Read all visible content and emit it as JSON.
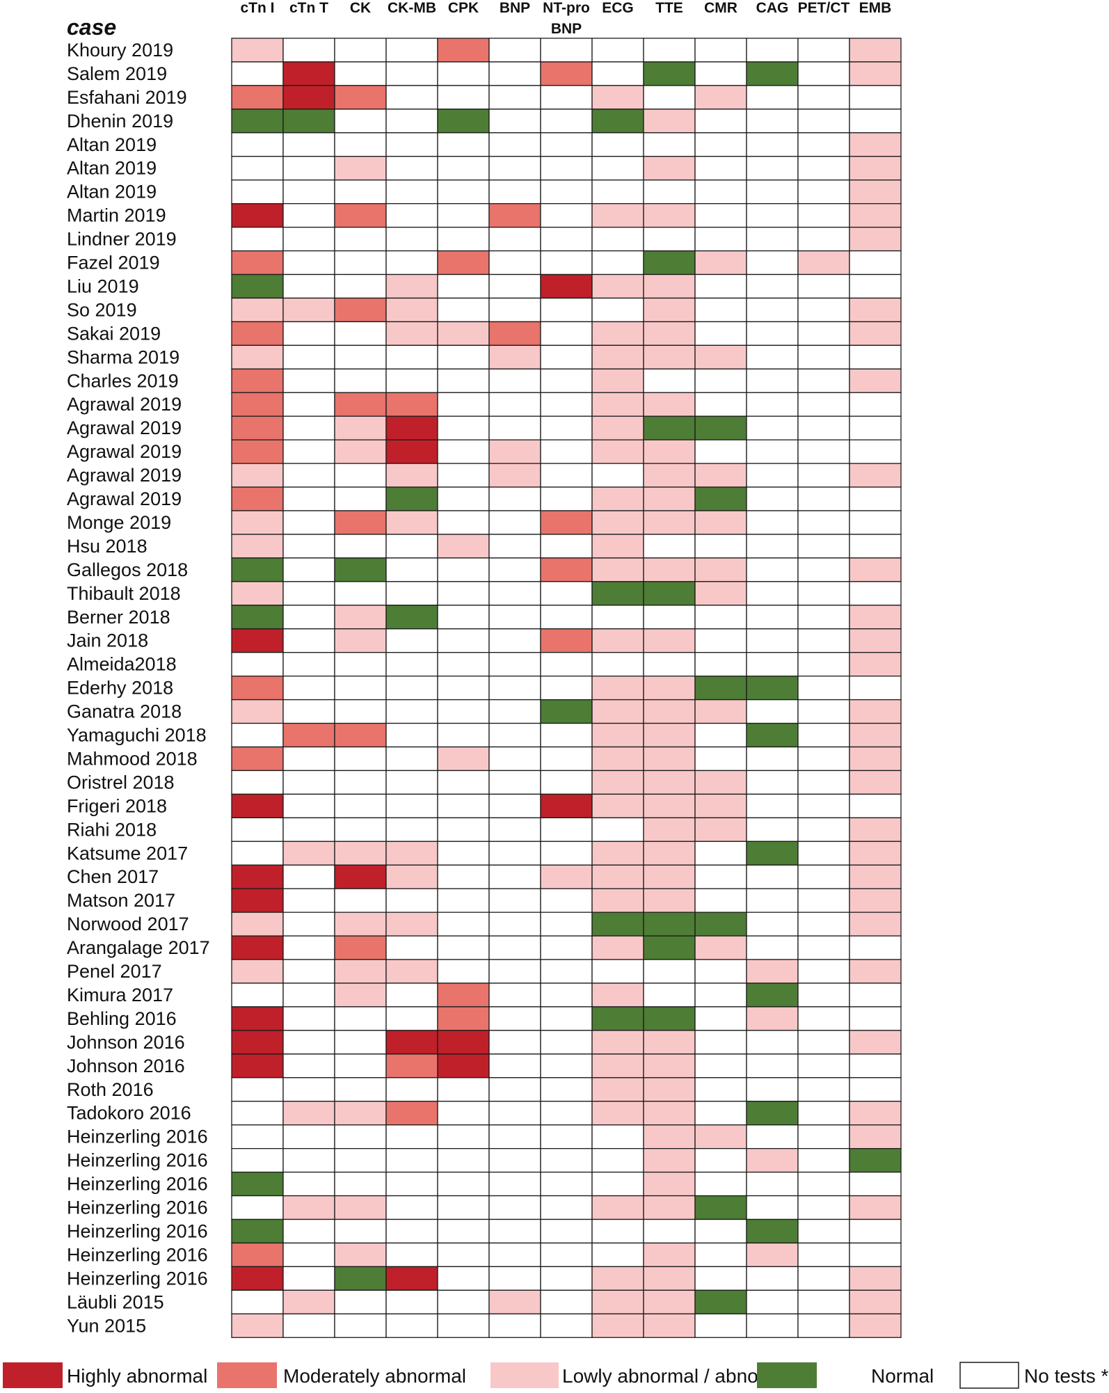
{
  "chart_data": {
    "type": "heatmap",
    "row_header": "case",
    "columns": [
      "cTn I",
      "cTn T",
      "CK",
      "CK-MB",
      "CPK",
      "BNP",
      "NT-pro BNP",
      "ECG",
      "TTE",
      "CMR",
      "CAG",
      "PET/CT",
      "EMB"
    ],
    "levels": {
      "H": {
        "label": "Highly abnormal",
        "color": "#c0202a"
      },
      "M": {
        "label": "Moderately abnormal",
        "color": "#e8746b"
      },
      "L": {
        "label": "Lowly abnormal / abnormal",
        "color": "#f8c8c8"
      },
      "N": {
        "label": "Normal",
        "color": "#4e7d35"
      },
      "-": {
        "label": "No tests *",
        "color": "#ffffff"
      }
    },
    "legend_order": [
      "H",
      "M",
      "L",
      "N",
      "-"
    ],
    "rows": [
      {
        "case": "Khoury 2019",
        "values": [
          "L",
          "-",
          "-",
          "-",
          "M",
          "-",
          "-",
          "-",
          "-",
          "-",
          "-",
          "-",
          "L"
        ]
      },
      {
        "case": "Salem  2019",
        "values": [
          "-",
          "H",
          "-",
          "-",
          "-",
          "-",
          "M",
          "-",
          "N",
          "-",
          "N",
          "-",
          "L"
        ]
      },
      {
        "case": "Esfahani 2019",
        "values": [
          "M",
          "H",
          "M",
          "-",
          "-",
          "-",
          "-",
          "L",
          "-",
          "L",
          "-",
          "-",
          "-"
        ]
      },
      {
        "case": "Dhenin 2019",
        "values": [
          "N",
          "N",
          "-",
          "-",
          "N",
          "-",
          "-",
          "N",
          "L",
          "-",
          "-",
          "-",
          "-"
        ]
      },
      {
        "case": "Altan 2019",
        "values": [
          "-",
          "-",
          "-",
          "-",
          "-",
          "-",
          "-",
          "-",
          "-",
          "-",
          "-",
          "-",
          "L"
        ]
      },
      {
        "case": "Altan 2019",
        "values": [
          "-",
          "-",
          "L",
          "-",
          "-",
          "-",
          "-",
          "-",
          "L",
          "-",
          "-",
          "-",
          "L"
        ]
      },
      {
        "case": "Altan 2019",
        "values": [
          "-",
          "-",
          "-",
          "-",
          "-",
          "-",
          "-",
          "-",
          "-",
          "-",
          "-",
          "-",
          "L"
        ]
      },
      {
        "case": "Martin 2019",
        "values": [
          "H",
          "-",
          "M",
          "-",
          "-",
          "M",
          "-",
          "L",
          "L",
          "-",
          "-",
          "-",
          "L"
        ]
      },
      {
        "case": "Lindner 2019",
        "values": [
          "-",
          "-",
          "-",
          "-",
          "-",
          "-",
          "-",
          "-",
          "-",
          "-",
          "-",
          "-",
          "L"
        ]
      },
      {
        "case": "Fazel 2019",
        "values": [
          "M",
          "-",
          "-",
          "-",
          "M",
          "-",
          "-",
          "-",
          "N",
          "L",
          "-",
          "L",
          "-"
        ]
      },
      {
        "case": "Liu 2019",
        "values": [
          "N",
          "-",
          "-",
          "L",
          "-",
          "-",
          "H",
          "L",
          "L",
          "-",
          "-",
          "-",
          "-"
        ]
      },
      {
        "case": "So  2019",
        "values": [
          "L",
          "L",
          "M",
          "L",
          "-",
          "-",
          "-",
          "-",
          "L",
          "-",
          "-",
          "-",
          "L"
        ]
      },
      {
        "case": "Sakai 2019",
        "values": [
          "M",
          "-",
          "-",
          "L",
          "L",
          "M",
          "-",
          "L",
          "L",
          "-",
          "-",
          "-",
          "L"
        ]
      },
      {
        "case": "Sharma 2019",
        "values": [
          "L",
          "-",
          "-",
          "-",
          "-",
          "L",
          "-",
          "L",
          "L",
          "L",
          "-",
          "-",
          "-"
        ]
      },
      {
        "case": "Charles 2019",
        "values": [
          "M",
          "-",
          "-",
          "-",
          "-",
          "-",
          "-",
          "L",
          "-",
          "-",
          "-",
          "-",
          "L"
        ]
      },
      {
        "case": "Agrawal 2019",
        "values": [
          "M",
          "-",
          "M",
          "M",
          "-",
          "-",
          "-",
          "L",
          "L",
          "-",
          "-",
          "-",
          "-"
        ]
      },
      {
        "case": "Agrawal 2019",
        "values": [
          "M",
          "-",
          "L",
          "H",
          "-",
          "-",
          "-",
          "L",
          "N",
          "N",
          "-",
          "-",
          "-"
        ]
      },
      {
        "case": "Agrawal 2019",
        "values": [
          "M",
          "-",
          "L",
          "H",
          "-",
          "L",
          "-",
          "L",
          "L",
          "-",
          "-",
          "-",
          "-"
        ]
      },
      {
        "case": "Agrawal 2019",
        "values": [
          "L",
          "-",
          "-",
          "L",
          "-",
          "L",
          "-",
          "-",
          "L",
          "L",
          "-",
          "-",
          "L"
        ]
      },
      {
        "case": "Agrawal 2019",
        "values": [
          "M",
          "-",
          "-",
          "N",
          "-",
          "-",
          "-",
          "L",
          "L",
          "N",
          "-",
          "-",
          "-"
        ]
      },
      {
        "case": "Monge 2019",
        "values": [
          "L",
          "-",
          "M",
          "L",
          "-",
          "-",
          "M",
          "L",
          "L",
          "L",
          "-",
          "-",
          "-"
        ]
      },
      {
        "case": "Hsu 2018",
        "values": [
          "L",
          "-",
          "-",
          "-",
          "L",
          "-",
          "-",
          "L",
          "-",
          "-",
          "-",
          "-",
          "-"
        ]
      },
      {
        "case": "Gallegos 2018",
        "values": [
          "N",
          "-",
          "N",
          "-",
          "-",
          "-",
          "M",
          "L",
          "L",
          "L",
          "-",
          "-",
          "L"
        ]
      },
      {
        "case": "Thibault 2018",
        "values": [
          "L",
          "-",
          "-",
          "-",
          "-",
          "-",
          "-",
          "N",
          "N",
          "L",
          "-",
          "-",
          "-"
        ]
      },
      {
        "case": "Berner 2018",
        "values": [
          "N",
          "-",
          "L",
          "N",
          "-",
          "-",
          "-",
          "-",
          "-",
          "-",
          "-",
          "-",
          "L"
        ]
      },
      {
        "case": "Jain 2018",
        "values": [
          "H",
          "-",
          "L",
          "-",
          "-",
          "-",
          "M",
          "L",
          "L",
          "-",
          "-",
          "-",
          "L"
        ]
      },
      {
        "case": "Almeida2018",
        "values": [
          "-",
          "-",
          "-",
          "-",
          "-",
          "-",
          "-",
          "-",
          "-",
          "-",
          "-",
          "-",
          "L"
        ]
      },
      {
        "case": "Ederhy 2018",
        "values": [
          "M",
          "-",
          "-",
          "-",
          "-",
          "-",
          "-",
          "L",
          "L",
          "N",
          "N",
          "-",
          "-"
        ]
      },
      {
        "case": "Ganatra 2018",
        "values": [
          "L",
          "-",
          "-",
          "-",
          "-",
          "-",
          "N",
          "L",
          "L",
          "L",
          "-",
          "-",
          "L"
        ]
      },
      {
        "case": "Yamaguchi 2018",
        "values": [
          "-",
          "M",
          "M",
          "-",
          "-",
          "-",
          "-",
          "L",
          "L",
          "-",
          "N",
          "-",
          "L"
        ]
      },
      {
        "case": "Mahmood 2018",
        "values": [
          "M",
          "-",
          "-",
          "-",
          "L",
          "-",
          "-",
          "L",
          "L",
          "-",
          "-",
          "-",
          "L"
        ]
      },
      {
        "case": "Oristrel 2018",
        "values": [
          "-",
          "-",
          "-",
          "-",
          "-",
          "-",
          "-",
          "L",
          "L",
          "L",
          "-",
          "-",
          "L"
        ]
      },
      {
        "case": "Frigeri 2018",
        "values": [
          "H",
          "-",
          "-",
          "-",
          "-",
          "-",
          "H",
          "L",
          "L",
          "L",
          "-",
          "-",
          "-"
        ]
      },
      {
        "case": "Riahi 2018",
        "values": [
          "-",
          "-",
          "-",
          "-",
          "-",
          "-",
          "-",
          "-",
          "L",
          "L",
          "-",
          "-",
          "L"
        ]
      },
      {
        "case": "Katsume 2017",
        "values": [
          "-",
          "L",
          "L",
          "L",
          "-",
          "-",
          "-",
          "L",
          "L",
          "-",
          "N",
          "-",
          "L"
        ]
      },
      {
        "case": "Chen 2017",
        "values": [
          "H",
          "-",
          "H",
          "L",
          "-",
          "-",
          "L",
          "L",
          "L",
          "-",
          "-",
          "-",
          "L"
        ]
      },
      {
        "case": "Matson 2017",
        "values": [
          "H",
          "-",
          "-",
          "-",
          "-",
          "-",
          "-",
          "L",
          "L",
          "-",
          "-",
          "-",
          "L"
        ]
      },
      {
        "case": "Norwood 2017",
        "values": [
          "L",
          "-",
          "L",
          "L",
          "-",
          "-",
          "-",
          "N",
          "N",
          "N",
          "-",
          "-",
          "L"
        ]
      },
      {
        "case": "Arangalage 2017",
        "values": [
          "H",
          "-",
          "M",
          "-",
          "-",
          "-",
          "-",
          "L",
          "N",
          "L",
          "-",
          "-",
          "-"
        ]
      },
      {
        "case": "Penel 2017",
        "values": [
          "L",
          "-",
          "L",
          "L",
          "-",
          "-",
          "-",
          "-",
          "-",
          "-",
          "L",
          "-",
          "L"
        ]
      },
      {
        "case": "Kimura 2017",
        "values": [
          "-",
          "-",
          "L",
          "-",
          "M",
          "-",
          "-",
          "L",
          "-",
          "-",
          "N",
          "-",
          "-"
        ]
      },
      {
        "case": "Behling 2016",
        "values": [
          "H",
          "-",
          "-",
          "-",
          "M",
          "-",
          "-",
          "N",
          "N",
          "-",
          "L",
          "-",
          "-"
        ]
      },
      {
        "case": "Johnson 2016",
        "values": [
          "H",
          "-",
          "-",
          "H",
          "H",
          "-",
          "-",
          "L",
          "L",
          "-",
          "-",
          "-",
          "L"
        ]
      },
      {
        "case": "Johnson 2016",
        "values": [
          "H",
          "-",
          "-",
          "M",
          "H",
          "-",
          "-",
          "L",
          "L",
          "-",
          "-",
          "-",
          "-"
        ]
      },
      {
        "case": "Roth 2016",
        "values": [
          "-",
          "-",
          "-",
          "-",
          "-",
          "-",
          "-",
          "L",
          "L",
          "-",
          "-",
          "-",
          "-"
        ]
      },
      {
        "case": "Tadokoro 2016",
        "values": [
          "-",
          "L",
          "L",
          "M",
          "-",
          "-",
          "-",
          "L",
          "L",
          "-",
          "N",
          "-",
          "L"
        ]
      },
      {
        "case": "Heinzerling 2016",
        "values": [
          "-",
          "-",
          "-",
          "-",
          "-",
          "-",
          "-",
          "-",
          "L",
          "L",
          "-",
          "-",
          "L"
        ]
      },
      {
        "case": "Heinzerling 2016",
        "values": [
          "-",
          "-",
          "-",
          "-",
          "-",
          "-",
          "-",
          "-",
          "L",
          "-",
          "L",
          "-",
          "N"
        ]
      },
      {
        "case": "Heinzerling 2016",
        "values": [
          "N",
          "-",
          "-",
          "-",
          "-",
          "-",
          "-",
          "-",
          "L",
          "-",
          "-",
          "-",
          "-"
        ]
      },
      {
        "case": "Heinzerling 2016",
        "values": [
          "-",
          "L",
          "L",
          "-",
          "-",
          "-",
          "-",
          "L",
          "L",
          "N",
          "-",
          "-",
          "L"
        ]
      },
      {
        "case": "Heinzerling 2016",
        "values": [
          "N",
          "-",
          "-",
          "-",
          "-",
          "-",
          "-",
          "-",
          "-",
          "-",
          "N",
          "-",
          "-"
        ]
      },
      {
        "case": "Heinzerling 2016",
        "values": [
          "M",
          "-",
          "L",
          "-",
          "-",
          "-",
          "-",
          "-",
          "L",
          "-",
          "L",
          "-",
          "-"
        ]
      },
      {
        "case": "Heinzerling 2016",
        "values": [
          "H",
          "-",
          "N",
          "H",
          "-",
          "-",
          "-",
          "L",
          "L",
          "-",
          "-",
          "-",
          "L"
        ]
      },
      {
        "case": "Läubli 2015",
        "values": [
          "-",
          "L",
          "-",
          "-",
          "-",
          "L",
          "-",
          "L",
          "L",
          "N",
          "-",
          "-",
          "L"
        ]
      },
      {
        "case": "Yun 2015",
        "values": [
          "L",
          "-",
          "-",
          "-",
          "-",
          "-",
          "-",
          "L",
          "L",
          "-",
          "-",
          "-",
          "L"
        ]
      }
    ]
  }
}
